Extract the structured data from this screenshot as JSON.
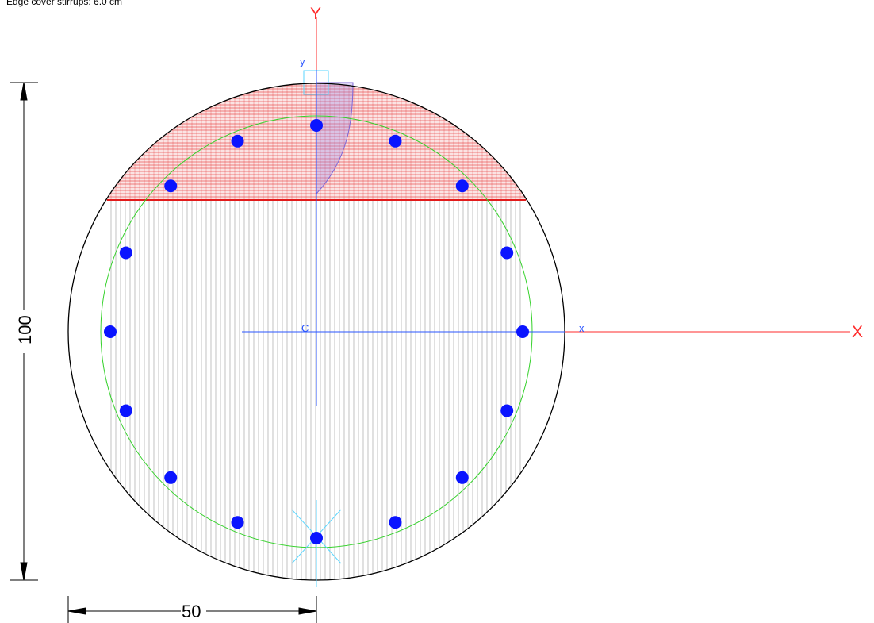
{
  "header": {
    "note": "Edge cover stirrups: 6.0 cm"
  },
  "axes": {
    "global_x": "X",
    "global_y": "Y",
    "local_x": "x",
    "local_y": "y",
    "centroid": "C"
  },
  "dimensions": {
    "height_label": "100",
    "half_width_label": "50"
  },
  "section": {
    "shape": "circle",
    "diameter_cm": 100,
    "stirrup_cover_cm": 6.0,
    "bar_count": 16
  },
  "colors": {
    "outline": "#000000",
    "compression_zone": "#e21b1b",
    "hatch": "#9a9a9a",
    "stirrup_circle": "#34d12a",
    "bars": "#0a14ff",
    "global_axis": "#ff2b2b",
    "local_axis": "#2a55ff",
    "stress_block": "#9f86e6"
  }
}
